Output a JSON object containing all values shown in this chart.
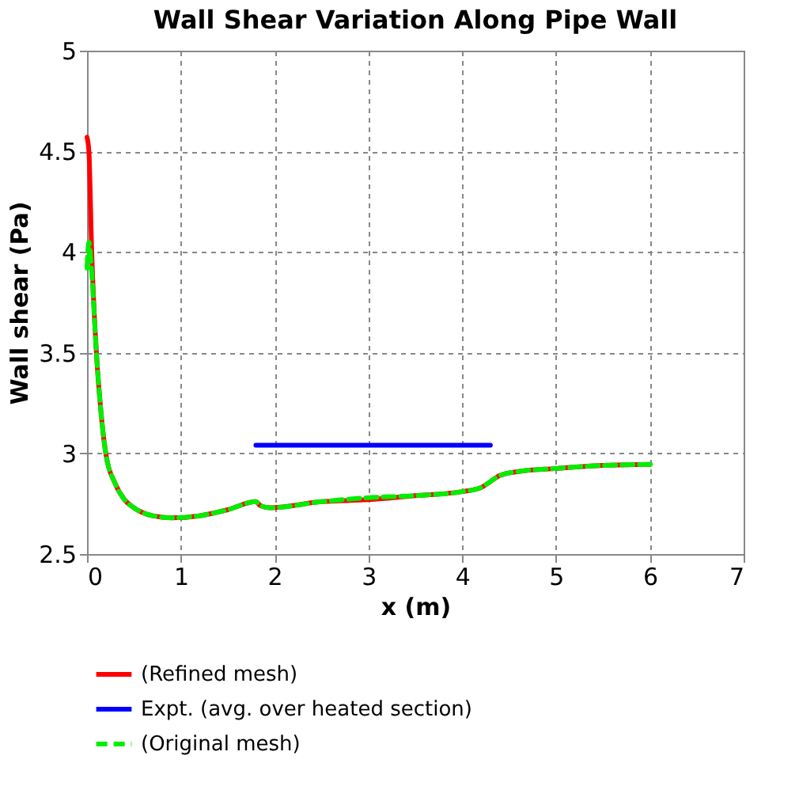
{
  "chart_data": {
    "type": "line",
    "title": "Wall Shear Variation Along Pipe Wall",
    "xlabel": "x (m)",
    "ylabel": "Wall shear (Pa)",
    "xlim": [
      0,
      7
    ],
    "xticks": [
      0,
      1,
      2,
      3,
      4,
      5,
      6,
      7
    ],
    "ylim": [
      2.5,
      5
    ],
    "yticks": [
      2.5,
      3,
      3.5,
      4,
      4.5,
      5
    ],
    "grid": true,
    "legend": "bottom",
    "series": [
      {
        "name": "(Refined mesh)",
        "color": "#ff0000",
        "line_style": "solid",
        "x": [
          0,
          0.02,
          0.05,
          0.1,
          0.15,
          0.2,
          0.3,
          0.4,
          0.5,
          0.7,
          0.9,
          1.2,
          1.5,
          1.8,
          1.85,
          1.95,
          2.5,
          3,
          3.5,
          4.0,
          4.2,
          4.3,
          4.4,
          4.6,
          5,
          5.5,
          6
        ],
        "values": [
          4.57,
          4.5,
          4.0,
          3.5,
          3.2,
          3.0,
          2.85,
          2.77,
          2.73,
          2.69,
          2.68,
          2.69,
          2.72,
          2.76,
          2.74,
          2.73,
          2.76,
          2.77,
          2.79,
          2.81,
          2.83,
          2.86,
          2.89,
          2.91,
          2.925,
          2.94,
          2.945
        ]
      },
      {
        "name": "Expt. (avg. over heated section)",
        "color": "#0000ff",
        "line_style": "solid",
        "x": [
          1.8,
          4.3
        ],
        "values": [
          3.04,
          3.04
        ]
      },
      {
        "name": "(Original mesh)",
        "color": "#00ee00",
        "line_style": "dashed",
        "x": [
          0,
          0.02,
          0.05,
          0.1,
          0.15,
          0.2,
          0.3,
          0.4,
          0.5,
          0.7,
          0.9,
          1.2,
          1.5,
          1.8,
          1.85,
          1.95,
          2.5,
          3,
          3.5,
          4.0,
          4.2,
          4.3,
          4.4,
          4.6,
          5,
          5.5,
          6.05
        ],
        "values": [
          3.92,
          4.05,
          3.9,
          3.5,
          3.2,
          3.0,
          2.85,
          2.77,
          2.73,
          2.69,
          2.68,
          2.69,
          2.72,
          2.76,
          2.74,
          2.73,
          2.76,
          2.78,
          2.79,
          2.81,
          2.83,
          2.86,
          2.89,
          2.91,
          2.925,
          2.94,
          2.945
        ]
      }
    ]
  }
}
